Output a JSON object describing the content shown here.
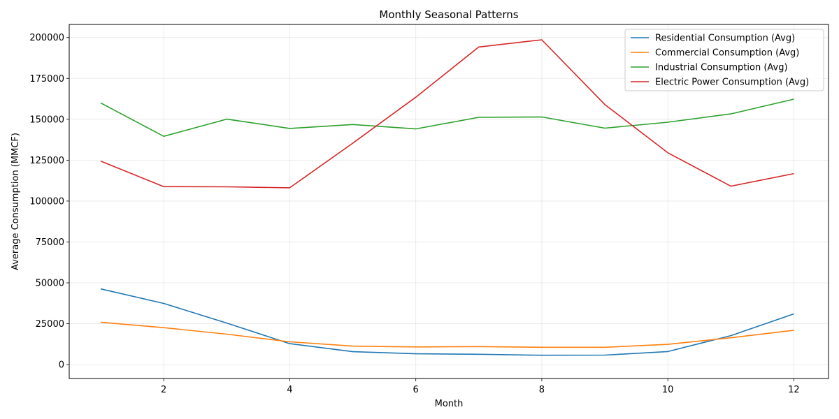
{
  "chart_data": {
    "type": "line",
    "title": "Monthly Seasonal Patterns",
    "xlabel": "Month",
    "ylabel": "Average Consumption (MMCF)",
    "x": [
      1,
      2,
      3,
      4,
      5,
      6,
      7,
      8,
      9,
      10,
      11,
      12
    ],
    "xlim": [
      0.5,
      12.55
    ],
    "ylim": [
      -8500,
      208000
    ],
    "xticks": [
      2,
      4,
      6,
      8,
      10,
      12
    ],
    "yticks": [
      0,
      25000,
      50000,
      75000,
      100000,
      125000,
      150000,
      175000,
      200000
    ],
    "grid": true,
    "legend_position": "top-right",
    "series": [
      {
        "name": "Residential Consumption (Avg)",
        "color": "#1f77b4",
        "values": [
          46300,
          37400,
          25400,
          12800,
          7900,
          6600,
          6300,
          5700,
          5800,
          8000,
          17700,
          31000
        ]
      },
      {
        "name": "Commercial Consumption (Avg)",
        "color": "#ff7f0e",
        "values": [
          25900,
          22600,
          18600,
          13900,
          11300,
          10800,
          11000,
          10600,
          10600,
          12400,
          16400,
          21000
        ]
      },
      {
        "name": "Industrial Consumption (Avg)",
        "color": "#2ca02c",
        "values": [
          160000,
          139600,
          150100,
          144400,
          146800,
          144100,
          151200,
          151400,
          144600,
          148200,
          153300,
          162300
        ]
      },
      {
        "name": "Electric Power Consumption (Avg)",
        "color": "#d62728",
        "values": [
          124400,
          108800,
          108700,
          108100,
          135400,
          163500,
          194200,
          198600,
          159000,
          129500,
          109100,
          116800
        ]
      }
    ]
  }
}
